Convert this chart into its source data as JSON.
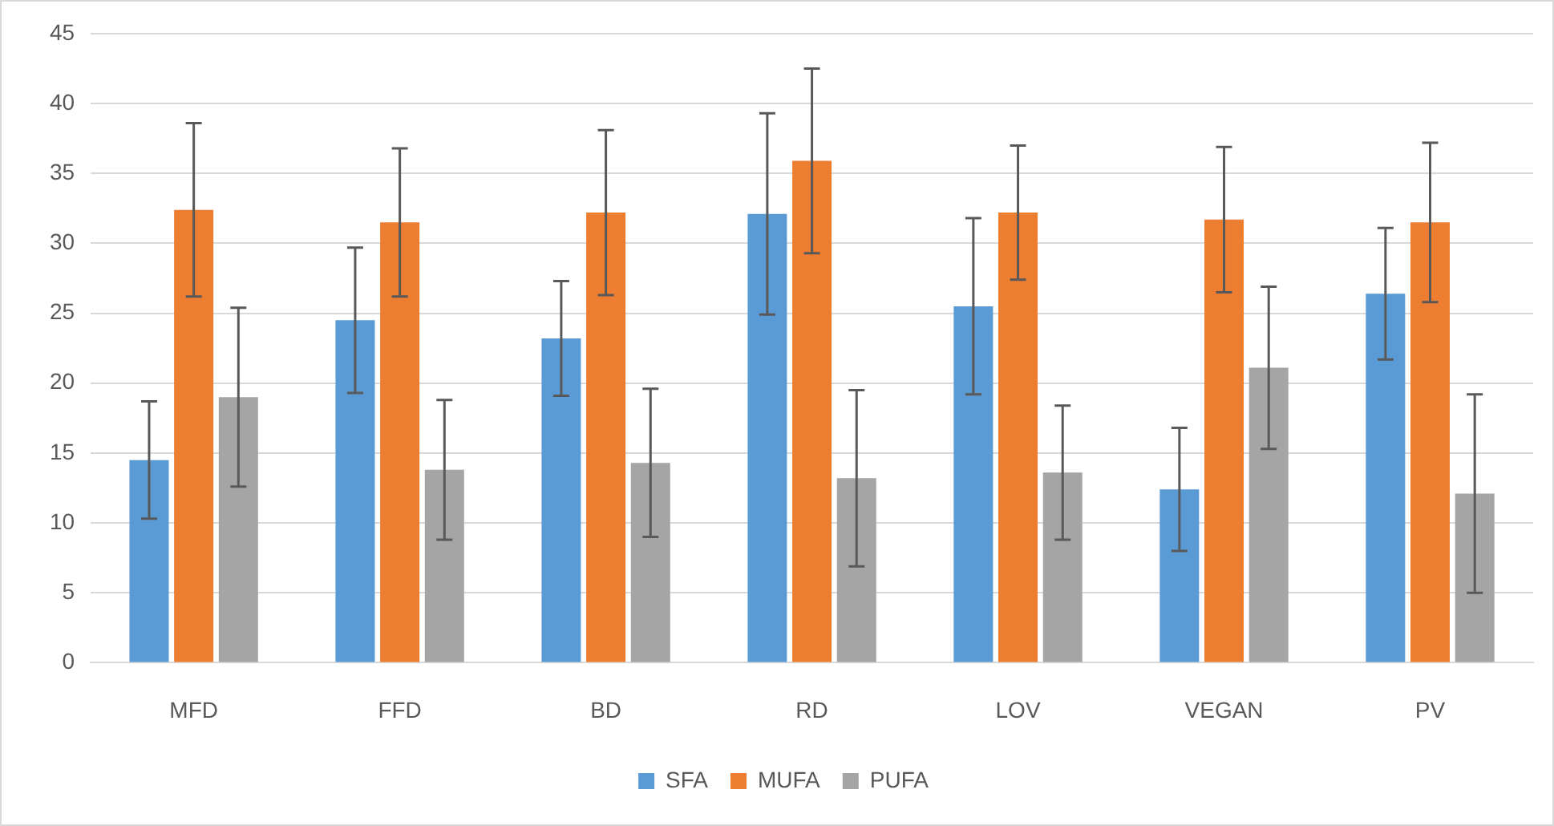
{
  "chart_data": {
    "type": "bar",
    "categories": [
      "MFD",
      "FFD",
      "BD",
      "RD",
      "LOV",
      "VEGAN",
      "PV"
    ],
    "series": [
      {
        "name": "SFA",
        "color": "#5b9bd5",
        "values": [
          14.5,
          24.5,
          23.2,
          32.1,
          25.5,
          12.4,
          26.4
        ],
        "errors": [
          4.2,
          5.2,
          4.1,
          7.2,
          6.3,
          4.4,
          4.7
        ]
      },
      {
        "name": "MUFA",
        "color": "#ed7d31",
        "values": [
          32.4,
          31.5,
          32.2,
          35.9,
          32.2,
          31.7,
          31.5
        ],
        "errors": [
          6.2,
          5.3,
          5.9,
          6.6,
          4.8,
          5.2,
          5.7
        ]
      },
      {
        "name": "PUFA",
        "color": "#a5a5a5",
        "values": [
          19,
          13.8,
          14.3,
          13.2,
          13.6,
          21.1,
          12.1
        ],
        "errors": [
          6.4,
          5,
          5.3,
          6.3,
          4.8,
          5.8,
          7.1
        ]
      }
    ],
    "ylim": [
      0,
      45
    ],
    "yticks": [
      0,
      5,
      10,
      15,
      20,
      25,
      30,
      35,
      40,
      45
    ],
    "grid": "y",
    "legend": "bottom"
  }
}
